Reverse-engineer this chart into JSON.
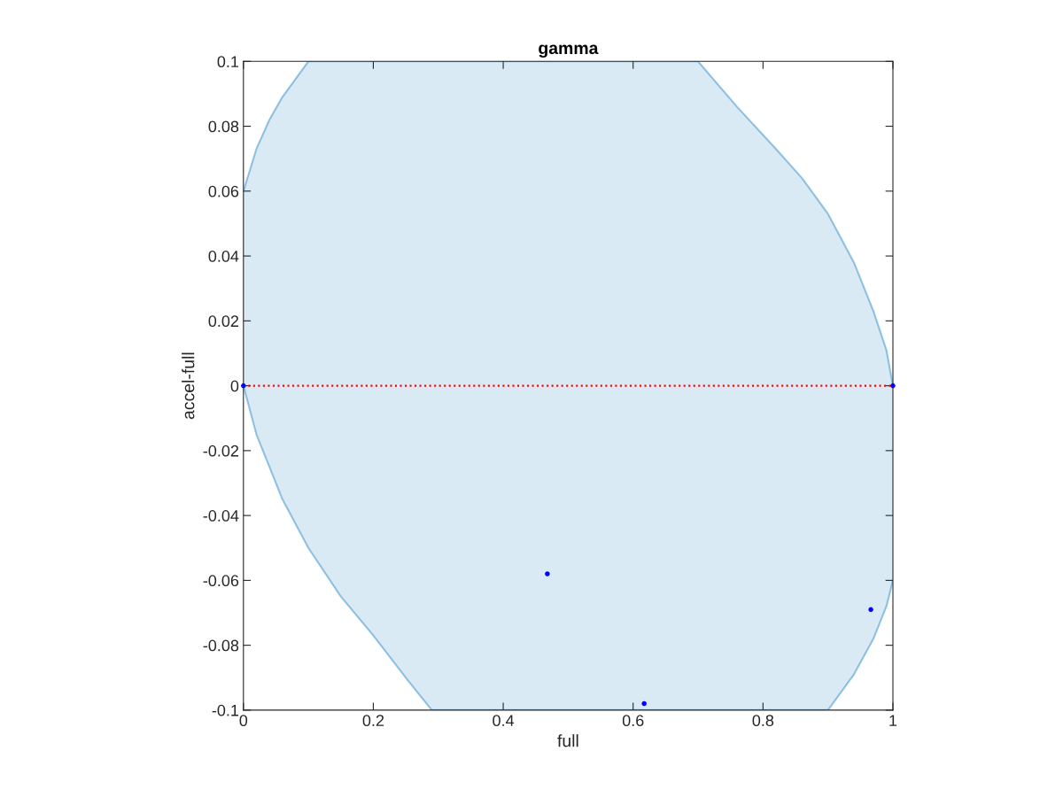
{
  "chart_data": {
    "type": "area",
    "title": "gamma",
    "xlabel": "full",
    "ylabel": "accel-full",
    "xlim": [
      0,
      1
    ],
    "ylim": [
      -0.1,
      0.1
    ],
    "xticks": [
      0,
      0.2,
      0.4,
      0.6,
      0.8,
      1
    ],
    "yticks": [
      -0.1,
      -0.08,
      -0.06,
      -0.04,
      -0.02,
      0,
      0.02,
      0.04,
      0.06,
      0.08,
      0.1
    ],
    "grid": false,
    "series": [
      {
        "color": "#0072bd",
        "x": [
          0,
          0.02,
          0.04,
          0.06,
          0.1,
          0.15,
          0.2,
          0.25,
          0.29,
          0.4,
          0.5,
          0.6,
          0.7,
          0.76,
          0.82,
          0.86,
          0.9,
          0.94,
          0.97,
          0.99,
          1
        ],
        "values": [
          0.06,
          0.073,
          0.082,
          0.089,
          0.1,
          0.1,
          0.1,
          0.1,
          0.1,
          0.1,
          0.1,
          0.1,
          0.1,
          0.086,
          0.073,
          0.064,
          0.053,
          0.038,
          0.023,
          0.011,
          0
        ]
      },
      {
        "color": "#0072bd",
        "x": [
          0,
          0.02,
          0.04,
          0.06,
          0.1,
          0.15,
          0.2,
          0.25,
          0.29,
          0.4,
          0.5,
          0.6,
          0.7,
          0.76,
          0.82,
          0.86,
          0.9,
          0.94,
          0.97,
          0.99,
          1
        ],
        "values": [
          0,
          -0.015,
          -0.025,
          -0.035,
          -0.05,
          -0.065,
          -0.077,
          -0.09,
          -0.1,
          -0.1,
          -0.1,
          -0.1,
          -0.1,
          -0.1,
          -0.1,
          -0.1,
          -0.1,
          -0.089,
          -0.078,
          -0.068,
          -0.06
        ]
      },
      {
        "type": "scatter",
        "marker": "circle",
        "color": "#0000ff",
        "x": [
          0,
          1,
          0.468,
          0.617,
          0.966
        ],
        "values": [
          0,
          0,
          -0.058,
          -0.098,
          -0.069
        ]
      }
    ],
    "ref_lines": [
      {
        "axis": "y",
        "value": 0,
        "color": "#ff0000",
        "line_style": "dotted"
      }
    ]
  }
}
